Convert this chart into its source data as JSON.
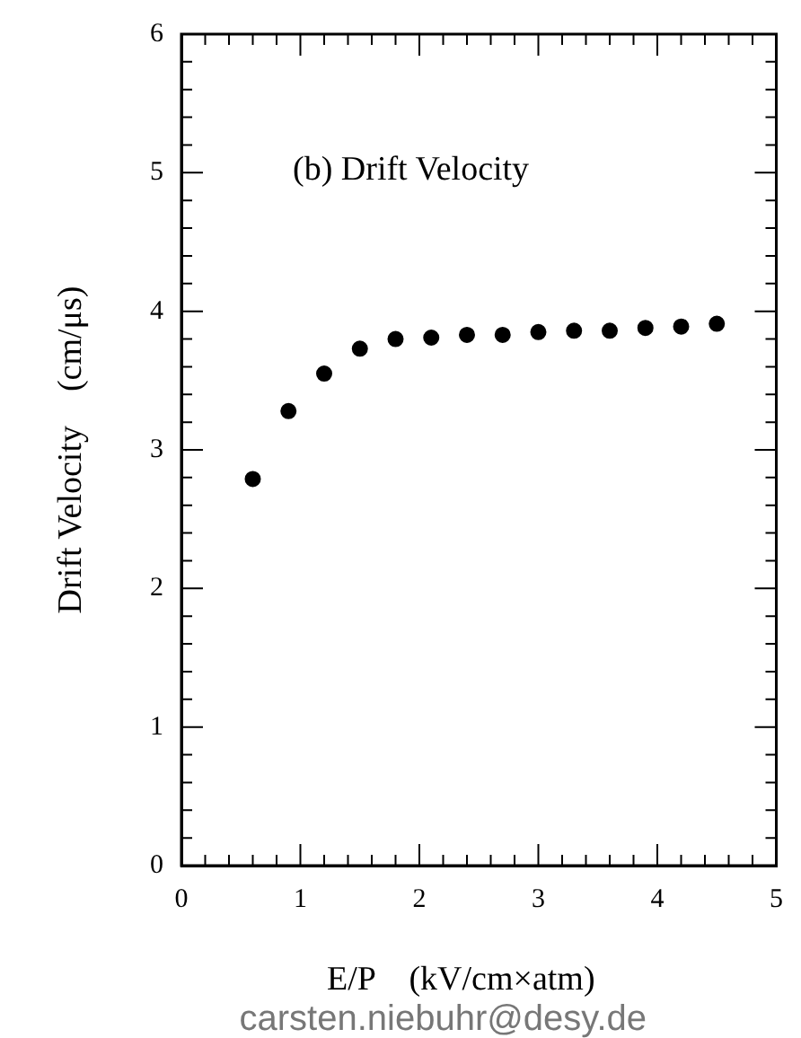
{
  "chart_data": {
    "type": "scatter",
    "title": "(b) Drift Velocity",
    "xlabel": "E/P    (kV/cm×atm)",
    "ylabel": "Drift Velocity    (cm/μs)",
    "annotations": [
      "carsten.niebuhr@desy.de"
    ],
    "x": [
      0.6,
      0.9,
      1.2,
      1.5,
      1.8,
      2.1,
      2.4,
      2.7,
      3.0,
      3.3,
      3.6,
      3.9,
      4.2,
      4.5
    ],
    "series": [
      {
        "color": "#000000",
        "values": [
          2.79,
          3.28,
          3.55,
          3.73,
          3.8,
          3.81,
          3.83,
          3.83,
          3.85,
          3.86,
          3.86,
          3.88,
          3.89,
          3.91
        ]
      }
    ],
    "marker": "circle",
    "grid": false,
    "legend": false,
    "xlim": [
      0,
      5
    ],
    "ylim": [
      0,
      6
    ],
    "xticks": [
      0,
      {
        "value": 0.2,
        "label": null
      },
      {
        "value": 0.4,
        "label": null
      },
      {
        "value": 0.6,
        "label": null
      },
      {
        "value": 0.8,
        "label": null
      },
      1,
      {
        "value": 1.2,
        "label": null
      },
      {
        "value": 1.4,
        "label": null
      },
      {
        "value": 1.6,
        "label": null
      },
      {
        "value": 1.8,
        "label": null
      },
      2,
      {
        "value": 2.2,
        "label": null
      },
      {
        "value": 2.4,
        "label": null
      },
      {
        "value": 2.6,
        "label": null
      },
      {
        "value": 2.8,
        "label": null
      },
      3,
      {
        "value": 3.2,
        "label": null
      },
      {
        "value": 3.4,
        "label": null
      },
      {
        "value": 3.6,
        "label": null
      },
      {
        "value": 3.8,
        "label": null
      },
      4,
      {
        "value": 4.2,
        "label": null
      },
      {
        "value": 4.4,
        "label": null
      },
      {
        "value": 4.6,
        "label": null
      },
      {
        "value": 4.8,
        "label": null
      },
      5
    ],
    "yticks": [
      0,
      {
        "value": 0.2,
        "label": null
      },
      {
        "value": 0.4,
        "label": null
      },
      {
        "value": 0.6,
        "label": null
      },
      {
        "value": 0.8,
        "label": null
      },
      1,
      {
        "value": 1.2,
        "label": null
      },
      {
        "value": 1.4,
        "label": null
      },
      {
        "value": 1.6,
        "label": null
      },
      {
        "value": 1.8,
        "label": null
      },
      2,
      {
        "value": 2.2,
        "label": null
      },
      {
        "value": 2.4,
        "label": null
      },
      {
        "value": 2.6,
        "label": null
      },
      {
        "value": 2.8,
        "label": null
      },
      3,
      {
        "value": 3.2,
        "label": null
      },
      {
        "value": 3.4,
        "label": null
      },
      {
        "value": 3.6,
        "label": null
      },
      {
        "value": 3.8,
        "label": null
      },
      4,
      {
        "value": 4.2,
        "label": null
      },
      {
        "value": 4.4,
        "label": null
      },
      {
        "value": 4.6,
        "label": null
      },
      {
        "value": 4.8,
        "label": null
      },
      5,
      {
        "value": 5.2,
        "label": null
      },
      {
        "value": 5.4,
        "label": null
      },
      {
        "value": 5.6,
        "label": null
      },
      {
        "value": 5.8,
        "label": null
      },
      6
    ]
  }
}
